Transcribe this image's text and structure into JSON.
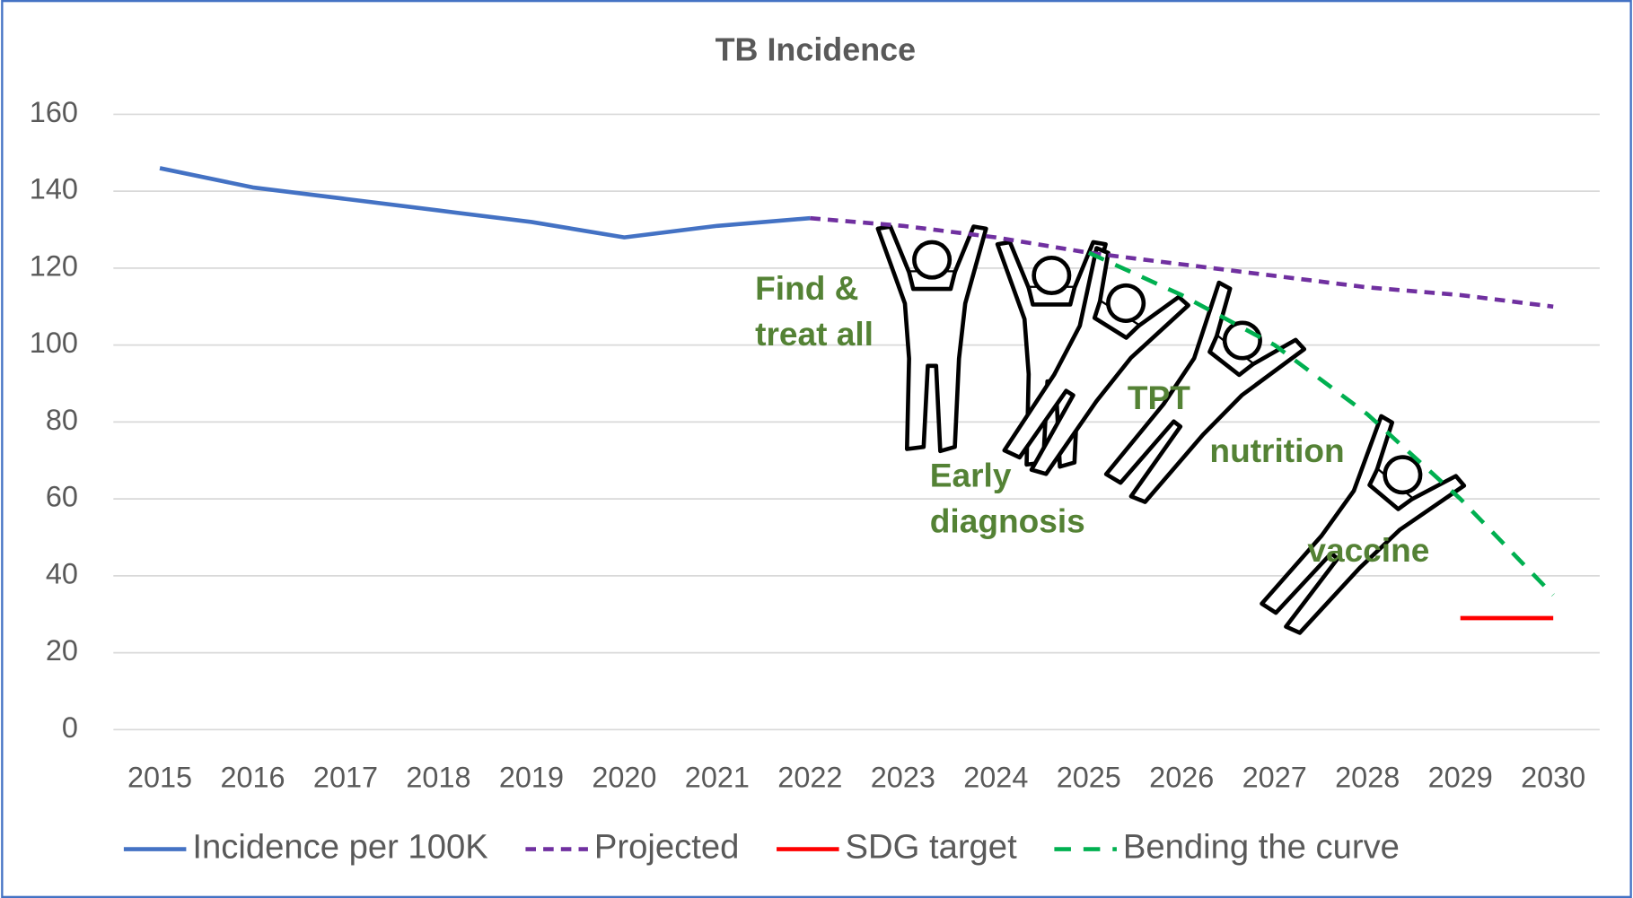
{
  "chart_data": {
    "type": "line",
    "title": "TB Incidence",
    "categories": [
      "2015",
      "2016",
      "2017",
      "2018",
      "2019",
      "2020",
      "2021",
      "2022",
      "2023",
      "2024",
      "2025",
      "2026",
      "2027",
      "2028",
      "2029",
      "2030"
    ],
    "series": [
      {
        "name": "Incidence per 100K",
        "color": "#4472c4",
        "style": "solid",
        "values": [
          146,
          141,
          138,
          135,
          132,
          128,
          131,
          133,
          null,
          null,
          null,
          null,
          null,
          null,
          null,
          null
        ]
      },
      {
        "name": "Projected",
        "color": "#7030a0",
        "style": "dotted",
        "values": [
          null,
          null,
          null,
          null,
          null,
          null,
          null,
          133,
          131,
          128,
          124,
          121,
          118,
          115,
          113,
          110
        ]
      },
      {
        "name": "SDG target",
        "color": "#ff0000",
        "style": "solid",
        "values": [
          null,
          null,
          null,
          null,
          null,
          null,
          null,
          null,
          null,
          null,
          null,
          null,
          null,
          null,
          29,
          29
        ]
      },
      {
        "name": "Bending the curve",
        "color": "#00b050",
        "style": "dashed",
        "values": [
          null,
          null,
          null,
          null,
          null,
          null,
          null,
          null,
          null,
          null,
          124,
          113,
          100,
          82,
          60,
          35
        ]
      }
    ],
    "ylim": [
      0,
      160
    ],
    "yticks": [
      0,
      20,
      40,
      60,
      80,
      100,
      120,
      140,
      160
    ],
    "grid": true,
    "legend": "bottom",
    "annotations": [
      {
        "lines": [
          "Find &",
          "treat all"
        ]
      },
      {
        "lines": [
          "Early",
          "diagnosis"
        ]
      },
      {
        "lines": [
          "TPT"
        ]
      },
      {
        "lines": [
          "nutrition"
        ]
      },
      {
        "lines": [
          "vaccine"
        ]
      }
    ]
  }
}
